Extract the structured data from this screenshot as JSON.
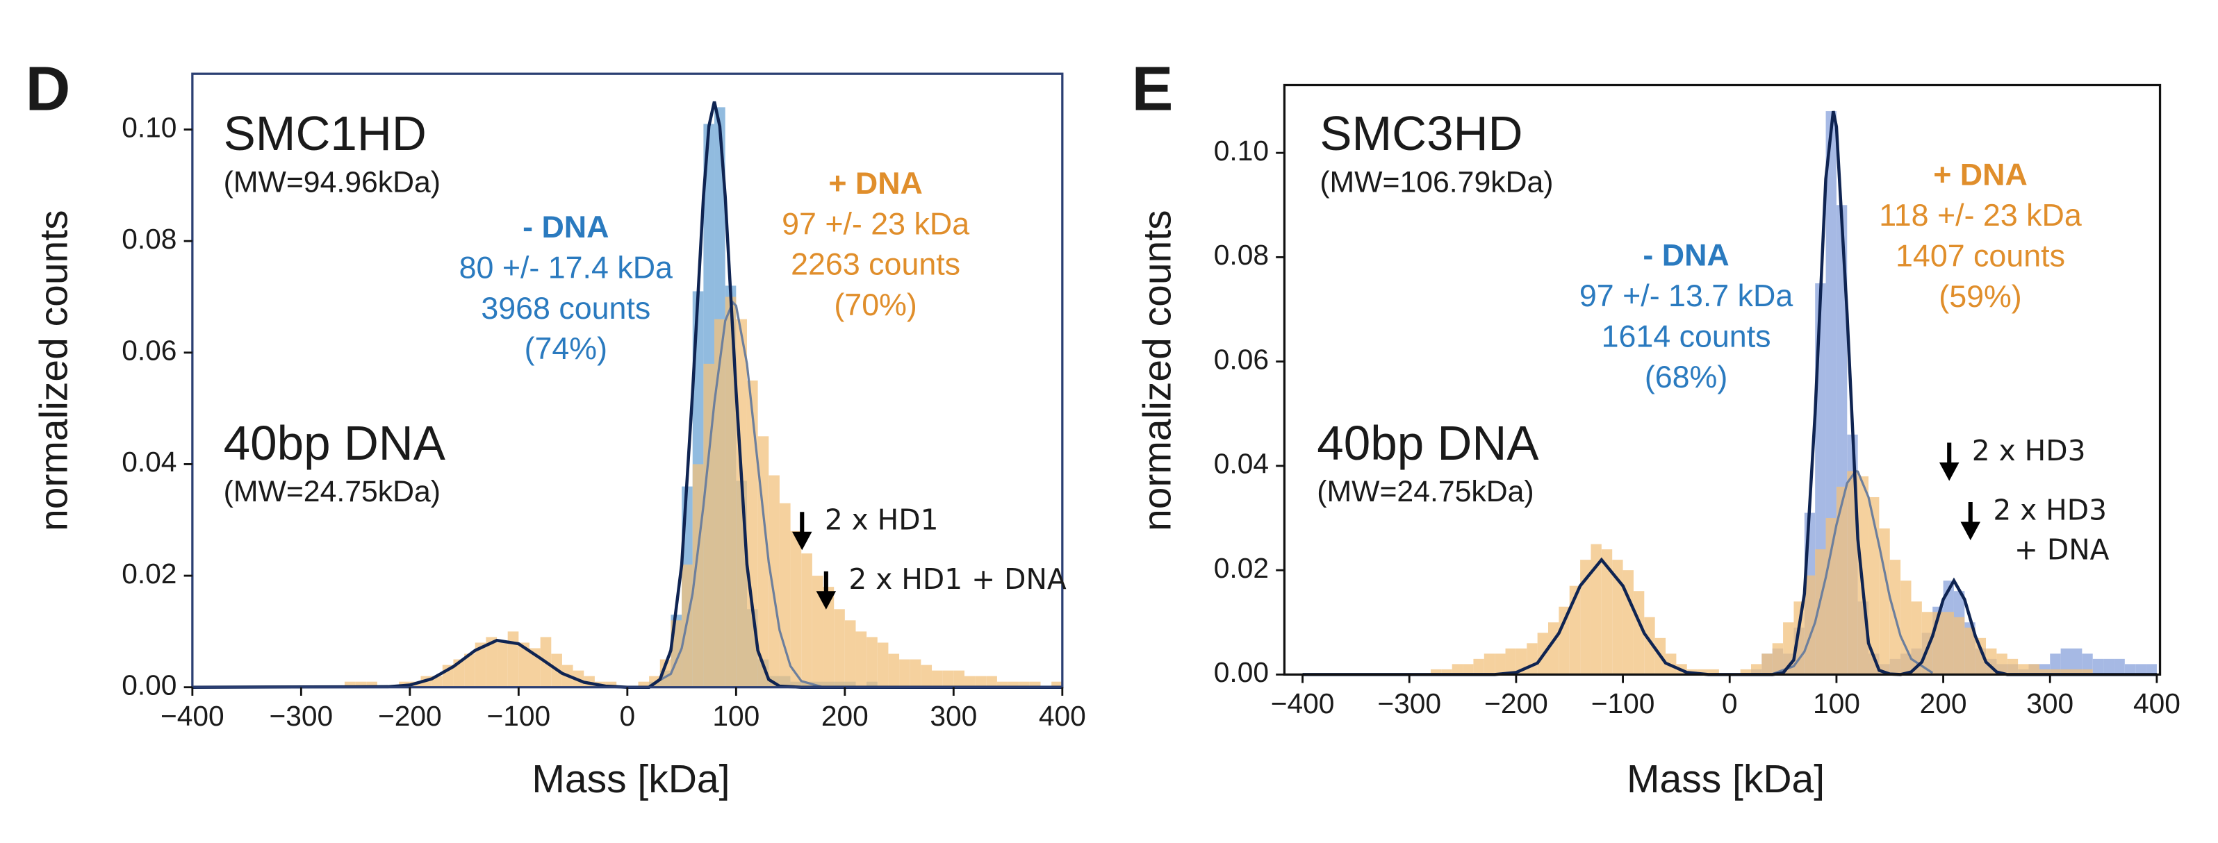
{
  "chart_data": [
    {
      "type": "histogram",
      "panel_label": "D",
      "sample_name": "SMC1HD",
      "sample_mw": "(MW=94.96kDa)",
      "dna_name": "40bp DNA",
      "dna_mw": "(MW=24.75kDa)",
      "xlabel": "Mass [kDa]",
      "ylabel": "normalized counts",
      "xlim": [
        -400,
        400
      ],
      "ylim": [
        0,
        0.11
      ],
      "xticks": [
        {
          "value": -400,
          "label": "−400"
        },
        {
          "value": -300,
          "label": "−300"
        },
        {
          "value": -200,
          "label": "−200"
        },
        {
          "value": -100,
          "label": "−100"
        },
        0,
        100,
        200,
        300,
        400
      ],
      "yticks": [
        {
          "value": 0,
          "label": "0.00"
        },
        {
          "value": 0.02,
          "label": "0.02"
        },
        {
          "value": 0.04,
          "label": "0.04"
        },
        {
          "value": 0.06,
          "label": "0.06"
        },
        {
          "value": 0.08,
          "label": "0.08"
        },
        {
          "value": 0.1,
          "label": "0.10"
        }
      ],
      "bins": [
        -300,
        -290,
        -280,
        -270,
        -260,
        -250,
        -240,
        -230,
        -220,
        -210,
        -200,
        -190,
        -180,
        -170,
        -160,
        -150,
        -140,
        -130,
        -120,
        -110,
        -100,
        -90,
        -80,
        -70,
        -60,
        -50,
        -40,
        -30,
        -20,
        -10,
        0,
        10,
        20,
        30,
        40,
        50,
        60,
        70,
        80,
        90,
        100,
        110,
        120,
        130,
        140,
        150,
        160,
        170,
        180,
        190,
        200,
        210,
        220,
        230,
        240,
        250,
        260,
        270,
        280,
        290,
        300,
        310,
        320,
        330,
        340,
        350,
        360,
        370,
        380,
        390,
        400
      ],
      "series": [
        {
          "name": "- DNA",
          "color": "#86b4dc",
          "stats": [
            "80 +/- 17.4 kDa",
            "3968 counts",
            "(74%)"
          ],
          "values": [
            0,
            0,
            0,
            0,
            0,
            0,
            0,
            0,
            0,
            0,
            0,
            0,
            0,
            0,
            0,
            0,
            0,
            0,
            0,
            0,
            0,
            0,
            0,
            0,
            0,
            0,
            0,
            0,
            0,
            0,
            0,
            0,
            0.001,
            0.003,
            0.013,
            0.036,
            0.071,
            0.101,
            0.104,
            0.072,
            0.037,
            0.014,
            0.005,
            0.002,
            0.002,
            0.001,
            0.001,
            0.001,
            0.001,
            0.001,
            0.001,
            0,
            0.001,
            0,
            0,
            0,
            0,
            0,
            0,
            0,
            0,
            0,
            0,
            0,
            0,
            0,
            0,
            0,
            0,
            0
          ]
        },
        {
          "name": "+ DNA",
          "color": "#f2c27e",
          "stats": [
            "97 +/- 23 kDa",
            "2263 counts",
            "(70%)"
          ],
          "values": [
            0,
            0,
            0,
            0,
            0.001,
            0.001,
            0.001,
            0,
            0,
            0.001,
            0.001,
            0.002,
            0.002,
            0.004,
            0.005,
            0.006,
            0.008,
            0.009,
            0.008,
            0.01,
            0.008,
            0.007,
            0.009,
            0.006,
            0.004,
            0.003,
            0.002,
            0.001,
            0.001,
            0,
            0,
            0.001,
            0.002,
            0.005,
            0.012,
            0.022,
            0.04,
            0.058,
            0.066,
            0.07,
            0.066,
            0.055,
            0.045,
            0.038,
            0.033,
            0.028,
            0.024,
            0.02,
            0.018,
            0.014,
            0.012,
            0.01,
            0.009,
            0.008,
            0.006,
            0.005,
            0.005,
            0.004,
            0.003,
            0.003,
            0.003,
            0.002,
            0.002,
            0.002,
            0.001,
            0.001,
            0.001,
            0.001,
            0,
            0.001
          ]
        }
      ],
      "fits": [
        {
          "color": "#0f2452",
          "x": [
            -400,
            -220,
            -200,
            -180,
            -160,
            -140,
            -120,
            -100,
            -80,
            -60,
            -40,
            -20,
            0,
            20,
            30,
            40,
            50,
            60,
            70,
            75,
            80,
            85,
            90,
            100,
            110,
            120,
            130,
            140,
            160,
            400
          ],
          "values": [
            0,
            0.0001,
            0.0004,
            0.0015,
            0.0037,
            0.0066,
            0.0084,
            0.0078,
            0.0052,
            0.0025,
            0.0009,
            0.0002,
            0,
            0,
            0.0014,
            0.0066,
            0.022,
            0.053,
            0.088,
            0.1006,
            0.105,
            0.1006,
            0.088,
            0.053,
            0.022,
            0.0066,
            0.0014,
            0.0002,
            0,
            0
          ]
        },
        {
          "color": "#6d7f9c",
          "x": [
            20,
            40,
            50,
            60,
            70,
            80,
            90,
            97,
            100,
            110,
            120,
            130,
            140,
            150,
            160,
            180
          ],
          "values": [
            0.0002,
            0.0024,
            0.007,
            0.0168,
            0.0326,
            0.051,
            0.0657,
            0.069,
            0.0684,
            0.058,
            0.04,
            0.0224,
            0.0102,
            0.0038,
            0.0011,
            0
          ]
        }
      ],
      "arrow_labels": [
        [
          "2 x HD1"
        ],
        [
          "2 x HD1 + DNA"
        ]
      ]
    },
    {
      "type": "histogram",
      "panel_label": "E",
      "sample_name": "SMC3HD",
      "sample_mw": "(MW=106.79kDa)",
      "dna_name": "40bp DNA",
      "dna_mw": "(MW=24.75kDa)",
      "xlabel": "Mass [kDa]",
      "ylabel": "normalized counts",
      "xlim": [
        -417,
        403
      ],
      "ylim": [
        0,
        0.113
      ],
      "xticks": [
        {
          "value": -400,
          "label": "−400"
        },
        {
          "value": -300,
          "label": "−300"
        },
        {
          "value": -200,
          "label": "−200"
        },
        {
          "value": -100,
          "label": "−100"
        },
        0,
        100,
        200,
        300,
        400
      ],
      "yticks": [
        {
          "value": 0,
          "label": "0.00"
        },
        {
          "value": 0.02,
          "label": "0.02"
        },
        {
          "value": 0.04,
          "label": "0.04"
        },
        {
          "value": 0.06,
          "label": "0.06"
        },
        {
          "value": 0.08,
          "label": "0.08"
        },
        {
          "value": 0.1,
          "label": "0.10"
        }
      ],
      "bins": [
        -300,
        -290,
        -280,
        -270,
        -260,
        -250,
        -240,
        -230,
        -220,
        -210,
        -200,
        -190,
        -180,
        -170,
        -160,
        -150,
        -140,
        -130,
        -120,
        -110,
        -100,
        -90,
        -80,
        -70,
        -60,
        -50,
        -40,
        -30,
        -20,
        -10,
        0,
        10,
        20,
        30,
        40,
        50,
        60,
        70,
        80,
        90,
        100,
        110,
        120,
        130,
        140,
        150,
        160,
        170,
        180,
        190,
        200,
        210,
        220,
        230,
        240,
        250,
        260,
        270,
        280,
        290,
        300,
        310,
        320,
        330,
        340,
        350,
        360,
        370,
        380,
        390,
        400
      ],
      "series": [
        {
          "name": "- DNA",
          "color": "#9db2e2",
          "stats": [
            "97 +/- 13.7 kDa",
            "1614 counts",
            "(68%)"
          ],
          "values": [
            0,
            0,
            0,
            0,
            0,
            0,
            0,
            0,
            0,
            0,
            0,
            0,
            0,
            0,
            0,
            0,
            0,
            0,
            0,
            0,
            0,
            0,
            0,
            0,
            0,
            0,
            0,
            0,
            0,
            0,
            0,
            0,
            0.001,
            0.004,
            0.005,
            0.004,
            0.009,
            0.031,
            0.075,
            0.108,
            0.09,
            0.046,
            0.014,
            0.004,
            0.002,
            0.003,
            0.004,
            0.005,
            0.008,
            0.013,
            0.018,
            0.016,
            0.01,
            0.005,
            0.003,
            0.002,
            0.002,
            0.001,
            0.002,
            0.002,
            0.004,
            0.005,
            0.005,
            0.004,
            0.003,
            0.003,
            0.003,
            0.002,
            0.002,
            0.002
          ]
        },
        {
          "name": "+ DNA",
          "color": "#f2c27e",
          "stats": [
            "118 +/- 23 kDa",
            "1407 counts",
            "(59%)"
          ],
          "values": [
            0,
            0,
            0.001,
            0.001,
            0.002,
            0.002,
            0.003,
            0.004,
            0.004,
            0.005,
            0.005,
            0.006,
            0.008,
            0.01,
            0.013,
            0.017,
            0.022,
            0.025,
            0.024,
            0.022,
            0.02,
            0.016,
            0.011,
            0.007,
            0.004,
            0.002,
            0.001,
            0.001,
            0.001,
            0,
            0,
            0.001,
            0.002,
            0.004,
            0.006,
            0.01,
            0.014,
            0.019,
            0.024,
            0.03,
            0.036,
            0.039,
            0.038,
            0.034,
            0.028,
            0.022,
            0.018,
            0.014,
            0.012,
            0.012,
            0.012,
            0.011,
            0.009,
            0.007,
            0.005,
            0.004,
            0.003,
            0.002,
            0.002,
            0.001,
            0.001,
            0.001,
            0.001,
            0.001,
            0,
            0,
            0,
            0,
            0,
            0
          ]
        }
      ],
      "fits": [
        {
          "color": "#0f2452",
          "x": [
            -400,
            -220,
            -200,
            -180,
            -160,
            -140,
            -120,
            -100,
            -80,
            -60,
            -40,
            -20,
            40,
            50,
            60,
            70,
            80,
            90,
            97,
            100,
            110,
            120,
            130,
            140,
            150,
            160,
            170,
            180,
            190,
            200,
            210,
            220,
            230,
            240,
            250,
            260,
            400
          ],
          "values": [
            0,
            0,
            0.0004,
            0.0022,
            0.0079,
            0.017,
            0.022,
            0.017,
            0.0079,
            0.0022,
            0.0004,
            0,
            0,
            0.0003,
            0.0028,
            0.0155,
            0.05,
            0.095,
            0.108,
            0.105,
            0.069,
            0.026,
            0.006,
            0.0008,
            0.0001,
            0,
            0.0005,
            0.0024,
            0.0074,
            0.0144,
            0.018,
            0.0144,
            0.0074,
            0.0024,
            0.0005,
            0,
            0
          ]
        },
        {
          "color": "#6d7f9c",
          "x": [
            40,
            60,
            70,
            80,
            90,
            100,
            110,
            118,
            120,
            130,
            140,
            150,
            160,
            170,
            190
          ],
          "values": [
            0.0001,
            0.0016,
            0.0044,
            0.01,
            0.0186,
            0.0287,
            0.0367,
            0.039,
            0.0389,
            0.034,
            0.0247,
            0.0148,
            0.0074,
            0.003,
            0.0003
          ]
        }
      ],
      "arrow_labels": [
        [
          "2 x HD3"
        ],
        [
          "2 x HD3",
          "+ DNA"
        ]
      ]
    }
  ]
}
